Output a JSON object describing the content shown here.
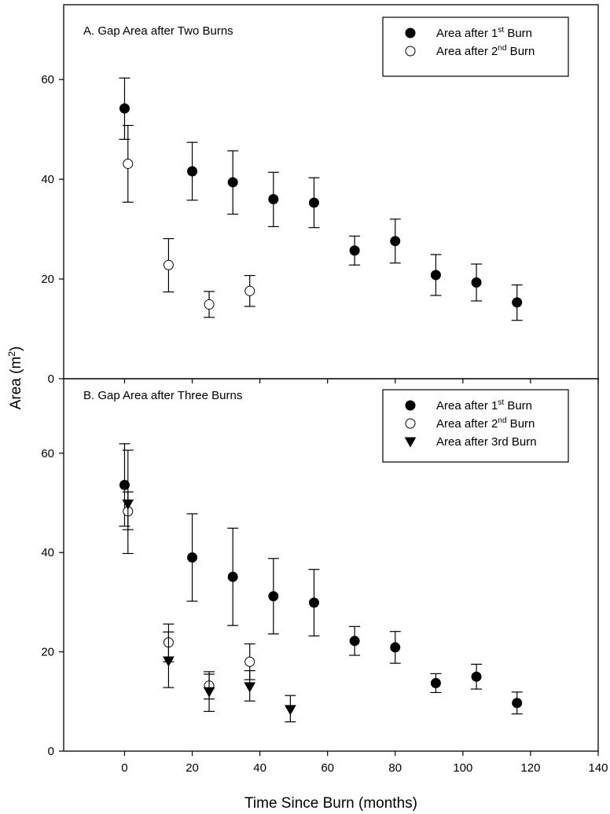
{
  "chart_data": {
    "type": "scatter",
    "xlabel": "Time Since Burn (months)",
    "ylabel_base": "Area (m",
    "ylabel_sup": "2",
    "ylabel_end": ")",
    "xlim": [
      -18,
      140
    ],
    "xticks": [
      0,
      20,
      40,
      60,
      80,
      100,
      120,
      140
    ],
    "ylim": [
      0,
      75
    ],
    "yticks": [
      0,
      20,
      40,
      60
    ],
    "error_bars": true,
    "panels": [
      {
        "title": "A. Gap Area after Two Burns",
        "legend_position": "top-right",
        "series": [
          {
            "name": "Area after 1",
            "name_sup": "st",
            "name_end": " Burn",
            "marker": "filled-circle",
            "points": [
              {
                "x": 0,
                "y": 54.2,
                "lo": 48.0,
                "hi": 60.3
              },
              {
                "x": 20,
                "y": 41.6,
                "lo": 35.8,
                "hi": 47.4
              },
              {
                "x": 32,
                "y": 39.4,
                "lo": 33.0,
                "hi": 45.7
              },
              {
                "x": 44,
                "y": 36.0,
                "lo": 30.5,
                "hi": 41.4
              },
              {
                "x": 56,
                "y": 35.3,
                "lo": 30.3,
                "hi": 40.3
              },
              {
                "x": 68,
                "y": 25.7,
                "lo": 22.8,
                "hi": 28.6
              },
              {
                "x": 80,
                "y": 27.6,
                "lo": 23.2,
                "hi": 32.0
              },
              {
                "x": 92,
                "y": 20.8,
                "lo": 16.7,
                "hi": 24.9
              },
              {
                "x": 104,
                "y": 19.3,
                "lo": 15.6,
                "hi": 23.0
              },
              {
                "x": 116,
                "y": 15.3,
                "lo": 11.7,
                "hi": 18.8
              }
            ]
          },
          {
            "name": "Area after 2",
            "name_sup": "nd",
            "name_end": " Burn",
            "marker": "open-circle",
            "points": [
              {
                "x": 1,
                "y": 43.1,
                "lo": 35.4,
                "hi": 50.8
              },
              {
                "x": 13,
                "y": 22.8,
                "lo": 17.4,
                "hi": 28.1
              },
              {
                "x": 25,
                "y": 14.9,
                "lo": 12.3,
                "hi": 17.5
              },
              {
                "x": 37,
                "y": 17.6,
                "lo": 14.5,
                "hi": 20.7
              }
            ]
          }
        ]
      },
      {
        "title": "B. Gap Area after Three Burns",
        "legend_position": "top-right",
        "series": [
          {
            "name": "Area after 1",
            "name_sup": "st",
            "name_end": " Burn",
            "marker": "filled-circle",
            "points": [
              {
                "x": 0,
                "y": 53.6,
                "lo": 45.3,
                "hi": 61.9
              },
              {
                "x": 20,
                "y": 39.0,
                "lo": 30.2,
                "hi": 47.8
              },
              {
                "x": 32,
                "y": 35.1,
                "lo": 25.3,
                "hi": 44.9
              },
              {
                "x": 44,
                "y": 31.2,
                "lo": 23.6,
                "hi": 38.8
              },
              {
                "x": 56,
                "y": 29.9,
                "lo": 23.2,
                "hi": 36.6
              },
              {
                "x": 68,
                "y": 22.2,
                "lo": 19.3,
                "hi": 25.1
              },
              {
                "x": 80,
                "y": 20.9,
                "lo": 17.7,
                "hi": 24.1
              },
              {
                "x": 92,
                "y": 13.7,
                "lo": 11.8,
                "hi": 15.6
              },
              {
                "x": 104,
                "y": 15.0,
                "lo": 12.5,
                "hi": 17.5
              },
              {
                "x": 116,
                "y": 9.7,
                "lo": 7.5,
                "hi": 11.9
              }
            ]
          },
          {
            "name": "Area after 2",
            "name_sup": "nd",
            "name_end": " Burn",
            "marker": "open-circle",
            "points": [
              {
                "x": 1,
                "y": 48.3,
                "lo": 39.8,
                "hi": 60.6
              },
              {
                "x": 13,
                "y": 21.9,
                "lo": 18.0,
                "hi": 25.6
              },
              {
                "x": 25,
                "y": 13.2,
                "lo": 10.5,
                "hi": 16.0
              },
              {
                "x": 37,
                "y": 18.0,
                "lo": 14.4,
                "hi": 21.6
              }
            ]
          },
          {
            "name": "Area after 3rd Burn",
            "name_sup": "",
            "name_end": "",
            "marker": "filled-triangle-down",
            "points": [
              {
                "x": 1,
                "y": 49.8,
                "lo": 44.6,
                "hi": 52.2
              },
              {
                "x": 13,
                "y": 18.2,
                "lo": 12.8,
                "hi": 24.0
              },
              {
                "x": 25,
                "y": 12.0,
                "lo": 8.0,
                "hi": 15.5
              },
              {
                "x": 37,
                "y": 13.0,
                "lo": 10.1,
                "hi": 16.2
              },
              {
                "x": 49,
                "y": 8.4,
                "lo": 5.9,
                "hi": 11.2
              }
            ]
          }
        ]
      }
    ]
  }
}
